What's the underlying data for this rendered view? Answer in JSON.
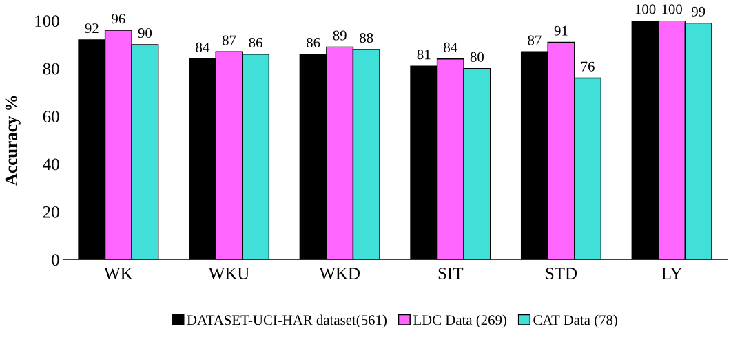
{
  "chart_data": {
    "type": "bar",
    "ylabel": "Accuracy %",
    "categories": [
      "WK",
      "WKU",
      "WKD",
      "SIT",
      "STD",
      "LY"
    ],
    "series": [
      {
        "name": "DATASET-UCI-HAR dataset(561)",
        "color": "#000000",
        "values": [
          92,
          84,
          86,
          81,
          87,
          100
        ]
      },
      {
        "name": "LDC Data (269)",
        "color": "#ff66ff",
        "values": [
          96,
          87,
          89,
          84,
          91,
          100
        ]
      },
      {
        "name": "CAT Data (78)",
        "color": "#40e0d8",
        "values": [
          90,
          86,
          88,
          80,
          76,
          99
        ]
      }
    ],
    "ylim": [
      0,
      100
    ],
    "yticks": [
      0,
      20,
      40,
      60,
      80,
      100
    ],
    "grid": false,
    "legend": "bottom",
    "data_labels": true
  }
}
